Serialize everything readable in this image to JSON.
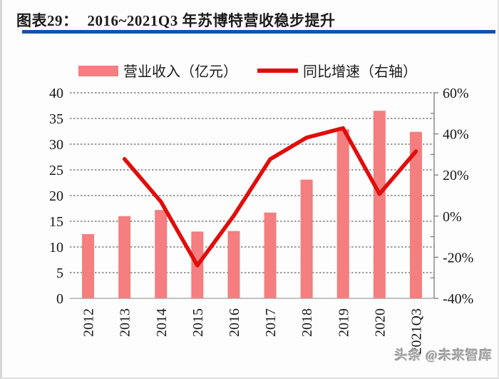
{
  "header": {
    "label": "图表29：",
    "title": "2016~2021Q3 年苏博特营收稳步提升"
  },
  "legend": {
    "bar_label": "营业收入（亿元）",
    "line_label": "同比增速（右轴）"
  },
  "watermark": {
    "text": "头条 @未来智库"
  },
  "colors": {
    "bar": "#f47e80",
    "line": "#e00d0b",
    "rule": "#1b519f",
    "grid": "#3c3c3c",
    "baseline": "#adadad",
    "right_axis": "#7a7a7a"
  },
  "chart_data": {
    "type": "bar",
    "subtype": "combo-bar-line-dual-axis",
    "title": "2016~2021Q3 年苏博特营收稳步提升",
    "categories": [
      "2012",
      "2013",
      "2014",
      "2015",
      "2016",
      "2017",
      "2018",
      "2019",
      "2020",
      "2021Q3"
    ],
    "series": [
      {
        "name": "营业收入（亿元）",
        "type": "bar",
        "axis": "left",
        "values": [
          12.5,
          16.0,
          17.2,
          13.0,
          13.1,
          16.7,
          23.1,
          32.9,
          36.5,
          32.4
        ]
      },
      {
        "name": "同比增速（右轴）",
        "type": "line",
        "axis": "right",
        "values": [
          null,
          27.8,
          7.0,
          -24.0,
          0.2,
          27.7,
          38.2,
          42.8,
          10.8,
          31.5
        ]
      }
    ],
    "left_axis": {
      "min": 0,
      "max": 40,
      "tick_values": [
        40,
        35,
        30,
        25,
        20,
        15,
        10,
        5,
        0
      ],
      "tick_labels": [
        "40",
        "35",
        "30",
        "25",
        "20",
        "15",
        "10",
        "5",
        "0"
      ]
    },
    "right_axis": {
      "min": -40,
      "max": 60,
      "minor_tick_step": 10,
      "tick_values": [
        60,
        40,
        20,
        0,
        -20,
        -40
      ],
      "tick_labels": [
        "60%",
        "40%",
        "20%",
        "0%",
        "-20%",
        "-40%"
      ]
    },
    "grid": "horizontal-dashed",
    "legend_position": "top-center"
  }
}
